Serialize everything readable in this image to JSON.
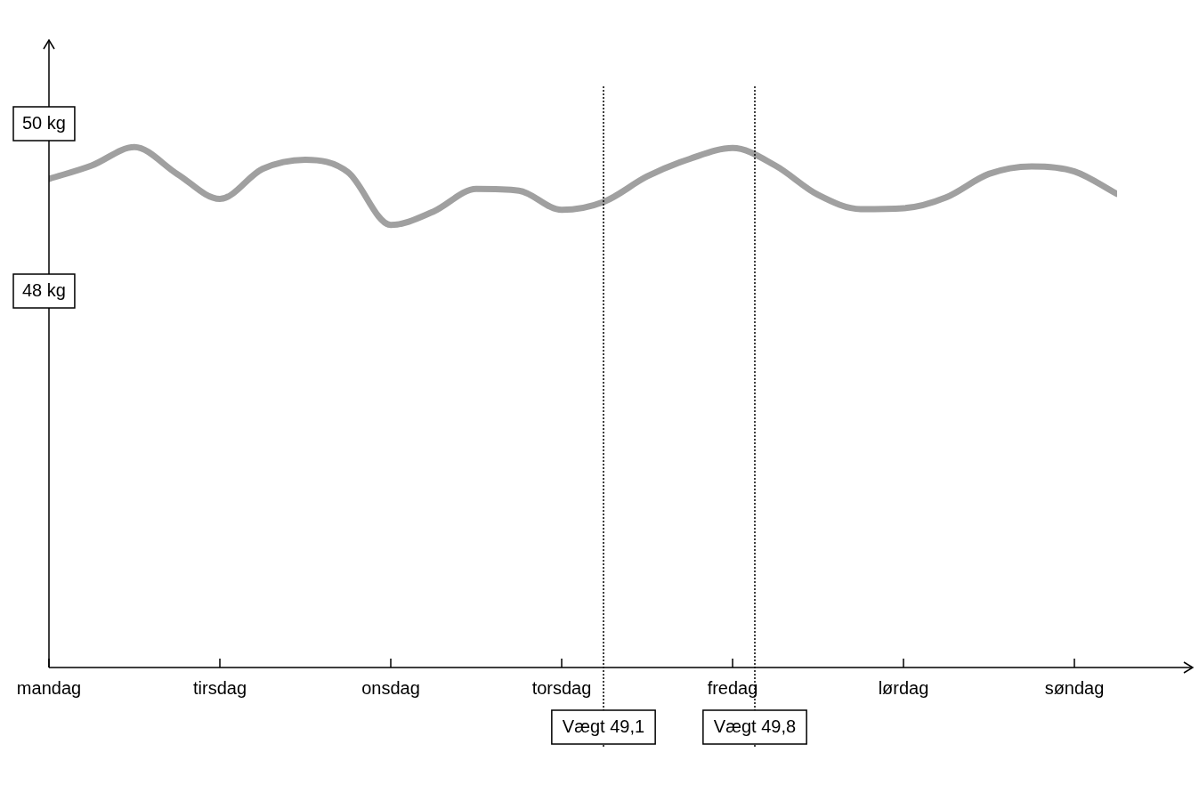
{
  "chart_data": {
    "type": "line",
    "categories": [
      "mandag",
      null,
      null,
      null,
      "tirsdag",
      null,
      null,
      null,
      "onsdag",
      null,
      null,
      null,
      "torsdag",
      null,
      null,
      null,
      "fredag",
      null,
      null,
      null,
      "lørdag",
      null,
      null,
      null,
      "søndag",
      null
    ],
    "series": [
      {
        "color": "#a0a0a0",
        "values": [
          49.34,
          49.5,
          49.72,
          49.4,
          49.1,
          49.46,
          49.57,
          49.42,
          48.79,
          48.95,
          49.22,
          49.2,
          48.97,
          49.07,
          49.37,
          49.58,
          49.71,
          49.5,
          49.15,
          48.98,
          48.99,
          49.12,
          49.4,
          49.49,
          49.43,
          49.16
        ]
      }
    ],
    "ylim": [
      43.5,
      51
    ],
    "yticks": [
      {
        "value": 48,
        "label": "48 kg"
      },
      {
        "value": 50,
        "label": "50 kg"
      }
    ],
    "annotations": [
      "Vægt 49,1",
      "Vægt 49,8"
    ],
    "legend": false,
    "marker": "none",
    "line_style": "solid"
  }
}
